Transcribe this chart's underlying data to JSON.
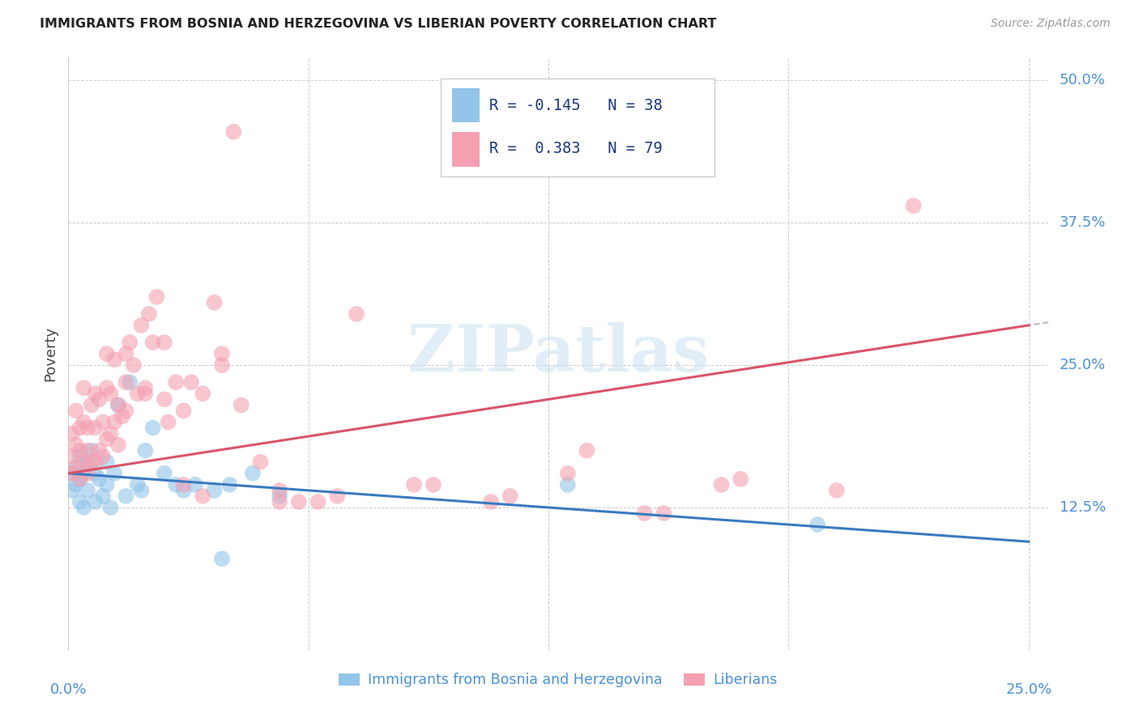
{
  "title": "IMMIGRANTS FROM BOSNIA AND HERZEGOVINA VS LIBERIAN POVERTY CORRELATION CHART",
  "source": "Source: ZipAtlas.com",
  "ylabel": "Poverty",
  "ytick_labels": [
    "50.0%",
    "37.5%",
    "25.0%",
    "12.5%"
  ],
  "ytick_positions": [
    0.5,
    0.375,
    0.25,
    0.125
  ],
  "legend_label1": "Immigrants from Bosnia and Herzegovina",
  "legend_label2": "Liberians",
  "r1": "-0.145",
  "n1": "38",
  "r2": "0.383",
  "n2": "79",
  "color_blue": "#92c5e8",
  "color_pink": "#f4a0b0",
  "color_blue_line": "#3a7abf",
  "color_pink_line": "#d9546a",
  "watermark": "ZIPatlas",
  "blue_x": [
    0.001,
    0.001,
    0.002,
    0.002,
    0.003,
    0.003,
    0.003,
    0.004,
    0.004,
    0.005,
    0.005,
    0.006,
    0.007,
    0.007,
    0.008,
    0.009,
    0.01,
    0.01,
    0.011,
    0.012,
    0.013,
    0.015,
    0.016,
    0.018,
    0.019,
    0.02,
    0.022,
    0.025,
    0.028,
    0.03,
    0.033,
    0.038,
    0.042,
    0.048,
    0.13,
    0.195,
    0.04,
    0.055
  ],
  "blue_y": [
    0.155,
    0.14,
    0.16,
    0.145,
    0.15,
    0.13,
    0.17,
    0.125,
    0.155,
    0.14,
    0.165,
    0.175,
    0.13,
    0.155,
    0.15,
    0.135,
    0.145,
    0.165,
    0.125,
    0.155,
    0.215,
    0.135,
    0.235,
    0.145,
    0.14,
    0.175,
    0.195,
    0.155,
    0.145,
    0.14,
    0.145,
    0.14,
    0.145,
    0.155,
    0.145,
    0.11,
    0.08,
    0.135
  ],
  "pink_x": [
    0.001,
    0.001,
    0.001,
    0.002,
    0.002,
    0.002,
    0.003,
    0.003,
    0.003,
    0.004,
    0.004,
    0.004,
    0.005,
    0.005,
    0.005,
    0.006,
    0.006,
    0.007,
    0.007,
    0.007,
    0.008,
    0.008,
    0.009,
    0.009,
    0.01,
    0.01,
    0.011,
    0.011,
    0.012,
    0.012,
    0.013,
    0.013,
    0.014,
    0.015,
    0.015,
    0.016,
    0.017,
    0.018,
    0.019,
    0.02,
    0.021,
    0.022,
    0.023,
    0.025,
    0.026,
    0.028,
    0.03,
    0.032,
    0.035,
    0.038,
    0.04,
    0.043,
    0.05,
    0.06,
    0.07,
    0.09,
    0.11,
    0.13,
    0.15,
    0.17,
    0.2,
    0.22,
    0.04,
    0.055,
    0.065,
    0.075,
    0.095,
    0.115,
    0.135,
    0.155,
    0.175,
    0.01,
    0.015,
    0.02,
    0.025,
    0.03,
    0.035,
    0.045,
    0.055
  ],
  "pink_y": [
    0.19,
    0.17,
    0.155,
    0.21,
    0.18,
    0.16,
    0.195,
    0.175,
    0.15,
    0.23,
    0.2,
    0.165,
    0.195,
    0.175,
    0.155,
    0.215,
    0.165,
    0.225,
    0.195,
    0.165,
    0.22,
    0.175,
    0.2,
    0.17,
    0.23,
    0.185,
    0.225,
    0.19,
    0.255,
    0.2,
    0.215,
    0.18,
    0.205,
    0.26,
    0.21,
    0.27,
    0.25,
    0.225,
    0.285,
    0.23,
    0.295,
    0.27,
    0.31,
    0.27,
    0.2,
    0.235,
    0.145,
    0.235,
    0.135,
    0.305,
    0.26,
    0.455,
    0.165,
    0.13,
    0.135,
    0.145,
    0.13,
    0.155,
    0.12,
    0.145,
    0.14,
    0.39,
    0.25,
    0.14,
    0.13,
    0.295,
    0.145,
    0.135,
    0.175,
    0.12,
    0.15,
    0.26,
    0.235,
    0.225,
    0.22,
    0.21,
    0.225,
    0.215,
    0.13
  ]
}
